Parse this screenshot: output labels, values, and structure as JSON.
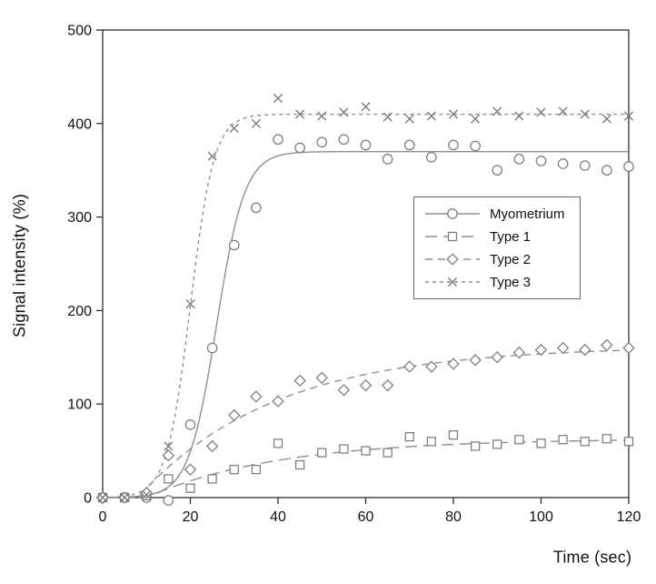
{
  "chart_data": {
    "type": "scatter",
    "title": "",
    "xlabel": "Time (sec)",
    "ylabel": "Signal intensity (%)",
    "xlim": [
      0,
      120
    ],
    "ylim": [
      0,
      500
    ],
    "xticks": [
      0,
      20,
      40,
      60,
      80,
      100,
      120
    ],
    "yticks": [
      0,
      100,
      200,
      300,
      400,
      500
    ],
    "grid": false,
    "legend_position": "inside-right",
    "x": [
      0,
      5,
      10,
      15,
      20,
      25,
      30,
      35,
      40,
      45,
      50,
      55,
      60,
      65,
      70,
      75,
      80,
      85,
      90,
      95,
      100,
      105,
      110,
      115,
      120
    ],
    "series": [
      {
        "name": "Myometrium",
        "marker": "circle",
        "line": "solid",
        "dash": "",
        "values": [
          0,
          0,
          0,
          -3,
          78,
          160,
          270,
          310,
          383,
          374,
          380,
          383,
          377,
          362,
          377,
          364,
          377,
          376,
          350,
          362,
          360,
          357,
          355,
          350,
          354
        ],
        "fit": {
          "kind": "logistic",
          "A": 370,
          "t0": 26,
          "tau": 3.2
        }
      },
      {
        "name": "Type 1",
        "marker": "square",
        "line": "long-dash",
        "dash": "13,7",
        "values": [
          0,
          0,
          2,
          20,
          10,
          20,
          30,
          30,
          58,
          35,
          48,
          52,
          50,
          48,
          65,
          60,
          67,
          55,
          57,
          62,
          58,
          62,
          60,
          63,
          60
        ],
        "fit": {
          "kind": "satexp",
          "A": 63,
          "delay": 10,
          "tau": 30
        }
      },
      {
        "name": "Type 2",
        "marker": "diamond",
        "line": "dash",
        "dash": "8,6",
        "values": [
          0,
          0,
          5,
          45,
          30,
          55,
          88,
          108,
          103,
          125,
          128,
          115,
          120,
          120,
          140,
          140,
          143,
          147,
          150,
          155,
          158,
          160,
          158,
          163,
          160
        ],
        "fit": {
          "kind": "satexp",
          "A": 162,
          "delay": 8,
          "tau": 31
        }
      },
      {
        "name": "Type 3",
        "marker": "x",
        "line": "short-dash",
        "dash": "4,4",
        "values": [
          0,
          0,
          3,
          55,
          207,
          365,
          395,
          400,
          427,
          410,
          408,
          412,
          418,
          407,
          405,
          408,
          410,
          405,
          413,
          408,
          412,
          413,
          410,
          405,
          408
        ],
        "fit": {
          "kind": "logistic",
          "A": 410,
          "t0": 20,
          "tau": 2.7
        }
      }
    ],
    "colors": {
      "curve": "#8f8f8f",
      "marker": "#7c7c7c",
      "axis": "#2e2e2e",
      "text": "#111111"
    }
  }
}
